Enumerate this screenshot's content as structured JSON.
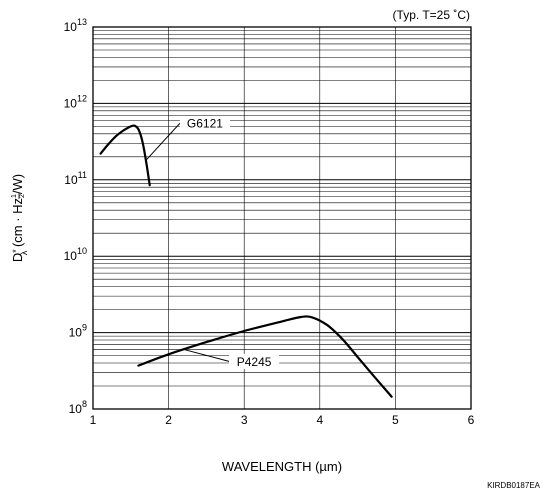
{
  "chart_data": {
    "type": "line",
    "condition_note": "(Typ. T=25 ˚C)",
    "xlabel": "WAVELENGTH (µm)",
    "ylabel": {
      "symbol": "D",
      "star": "*",
      "lambda": "λ",
      "prefix": " (cm · Hz",
      "exp_num": "1",
      "exp_den": "2",
      "suffix": "/W)"
    },
    "figure_code": "KIRDB0187EA",
    "x_scale": "linear",
    "y_scale": "log",
    "xlim": [
      1,
      6
    ],
    "ylim": [
      100000000,
      10000000000000
    ],
    "x_ticks": [
      {
        "value": 1,
        "label": "1"
      },
      {
        "value": 2,
        "label": "2"
      },
      {
        "value": 3,
        "label": "3"
      },
      {
        "value": 4,
        "label": "4"
      },
      {
        "value": 5,
        "label": "5"
      },
      {
        "value": 6,
        "label": "6"
      }
    ],
    "y_ticks": [
      {
        "value": 100000000,
        "base": "10",
        "exp": "8"
      },
      {
        "value": 1000000000,
        "base": "10",
        "exp": "9"
      },
      {
        "value": 10000000000,
        "base": "10",
        "exp": "10"
      },
      {
        "value": 100000000000,
        "base": "10",
        "exp": "11"
      },
      {
        "value": 1000000000000,
        "base": "10",
        "exp": "12"
      },
      {
        "value": 10000000000000,
        "base": "10",
        "exp": "13"
      }
    ],
    "grid": true,
    "series": [
      {
        "name": "G6121",
        "x": [
          1.1,
          1.2,
          1.3,
          1.4,
          1.5,
          1.55,
          1.6,
          1.65,
          1.7,
          1.75
        ],
        "y": [
          220000000000,
          290000000000,
          370000000000,
          440000000000,
          500000000000,
          510000000000,
          460000000000,
          330000000000,
          180000000000,
          85000000000
        ]
      },
      {
        "name": "P4245",
        "x": [
          1.6,
          2.0,
          2.5,
          3.0,
          3.5,
          3.75,
          3.9,
          4.1,
          4.3,
          4.5,
          4.7,
          4.95
        ],
        "y": [
          370000000,
          520000000,
          750000000,
          1050000000,
          1400000000,
          1600000000,
          1580000000,
          1250000000,
          820000000,
          480000000,
          280000000,
          145000000
        ]
      }
    ],
    "annotations": [
      {
        "text": "G6121",
        "series": "G6121",
        "at_x": 1.7,
        "box_x": 2.15,
        "box_y": 550000000000
      },
      {
        "text": "P4245",
        "series": "P4245",
        "at_x": 2.2,
        "box_x": 2.8,
        "box_y": 420000000
      }
    ]
  }
}
